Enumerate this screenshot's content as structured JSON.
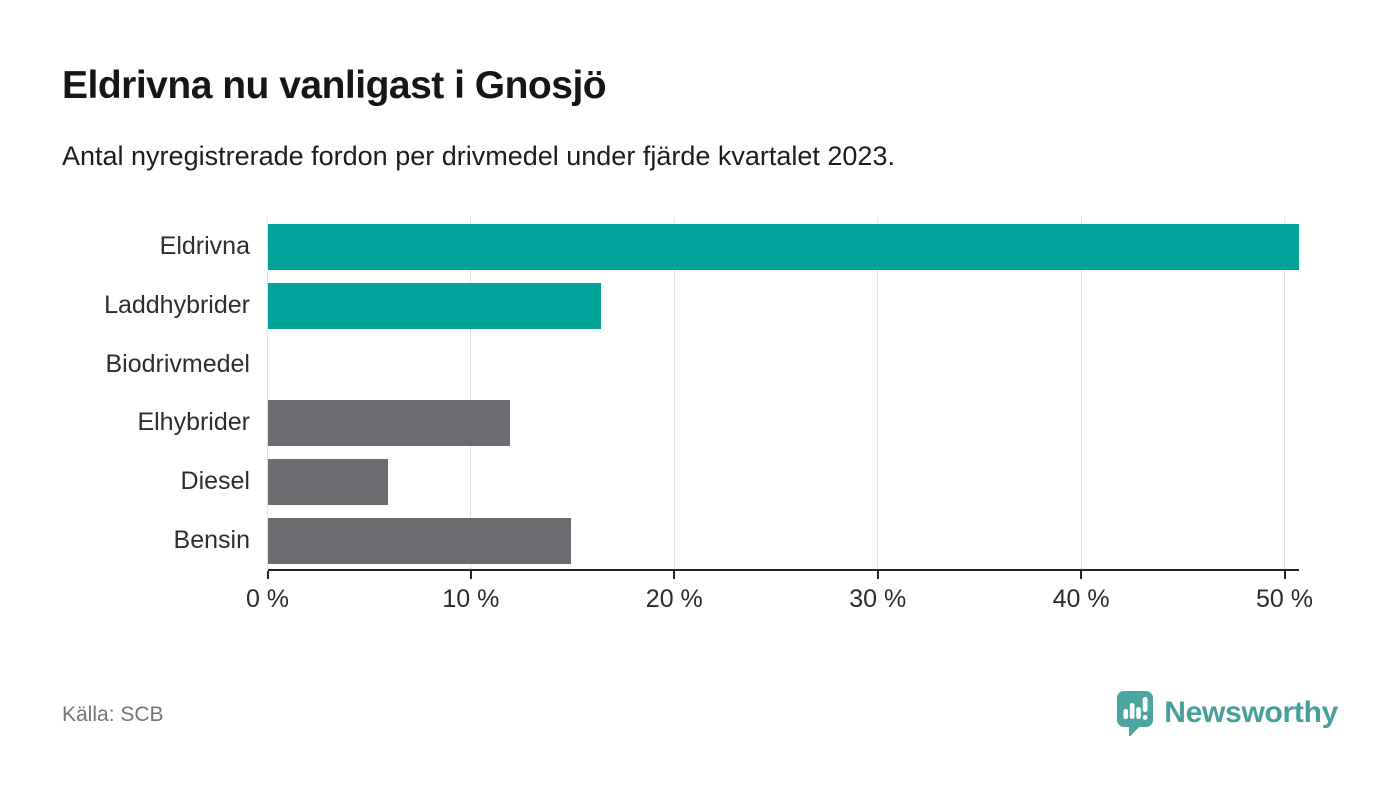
{
  "header": {
    "title": "Eldrivna nu vanligast i Gnosjö",
    "subtitle": "Antal nyregistrerade fordon per drivmedel under fjärde kvartalet 2023."
  },
  "chart_data": {
    "type": "bar",
    "orientation": "horizontal",
    "categories": [
      "Eldrivna",
      "Laddhybrider",
      "Biodrivmedel",
      "Elhybrider",
      "Diesel",
      "Bensin"
    ],
    "values": [
      50.7,
      16.4,
      0,
      11.9,
      5.9,
      14.9
    ],
    "bar_colors": [
      "#00a29a",
      "#00a29a",
      "#6b6b70",
      "#6b6b70",
      "#6b6b70",
      "#6b6b70"
    ],
    "highlight_color": "#00a29a",
    "default_color": "#6b6b70",
    "xlim": [
      0,
      50.7
    ],
    "x_ticks": [
      0,
      10,
      20,
      30,
      40,
      50
    ],
    "x_tick_labels": [
      "0 %",
      "10 %",
      "20 %",
      "30 %",
      "40 %",
      "50 %"
    ],
    "grid": true,
    "unit": "%",
    "title": "Eldrivna nu vanligast i Gnosjö",
    "xlabel": "",
    "ylabel": ""
  },
  "footer": {
    "source": "Källa: SCB",
    "brand": "Newsworthy",
    "brand_color": "#47a09c",
    "logo_icon": "bar-chart-speech-bubble-icon"
  },
  "colors": {
    "grid": "#e3e3e3",
    "axis": "#252525",
    "text_dark": "#161616",
    "text_muted": "#757575"
  }
}
